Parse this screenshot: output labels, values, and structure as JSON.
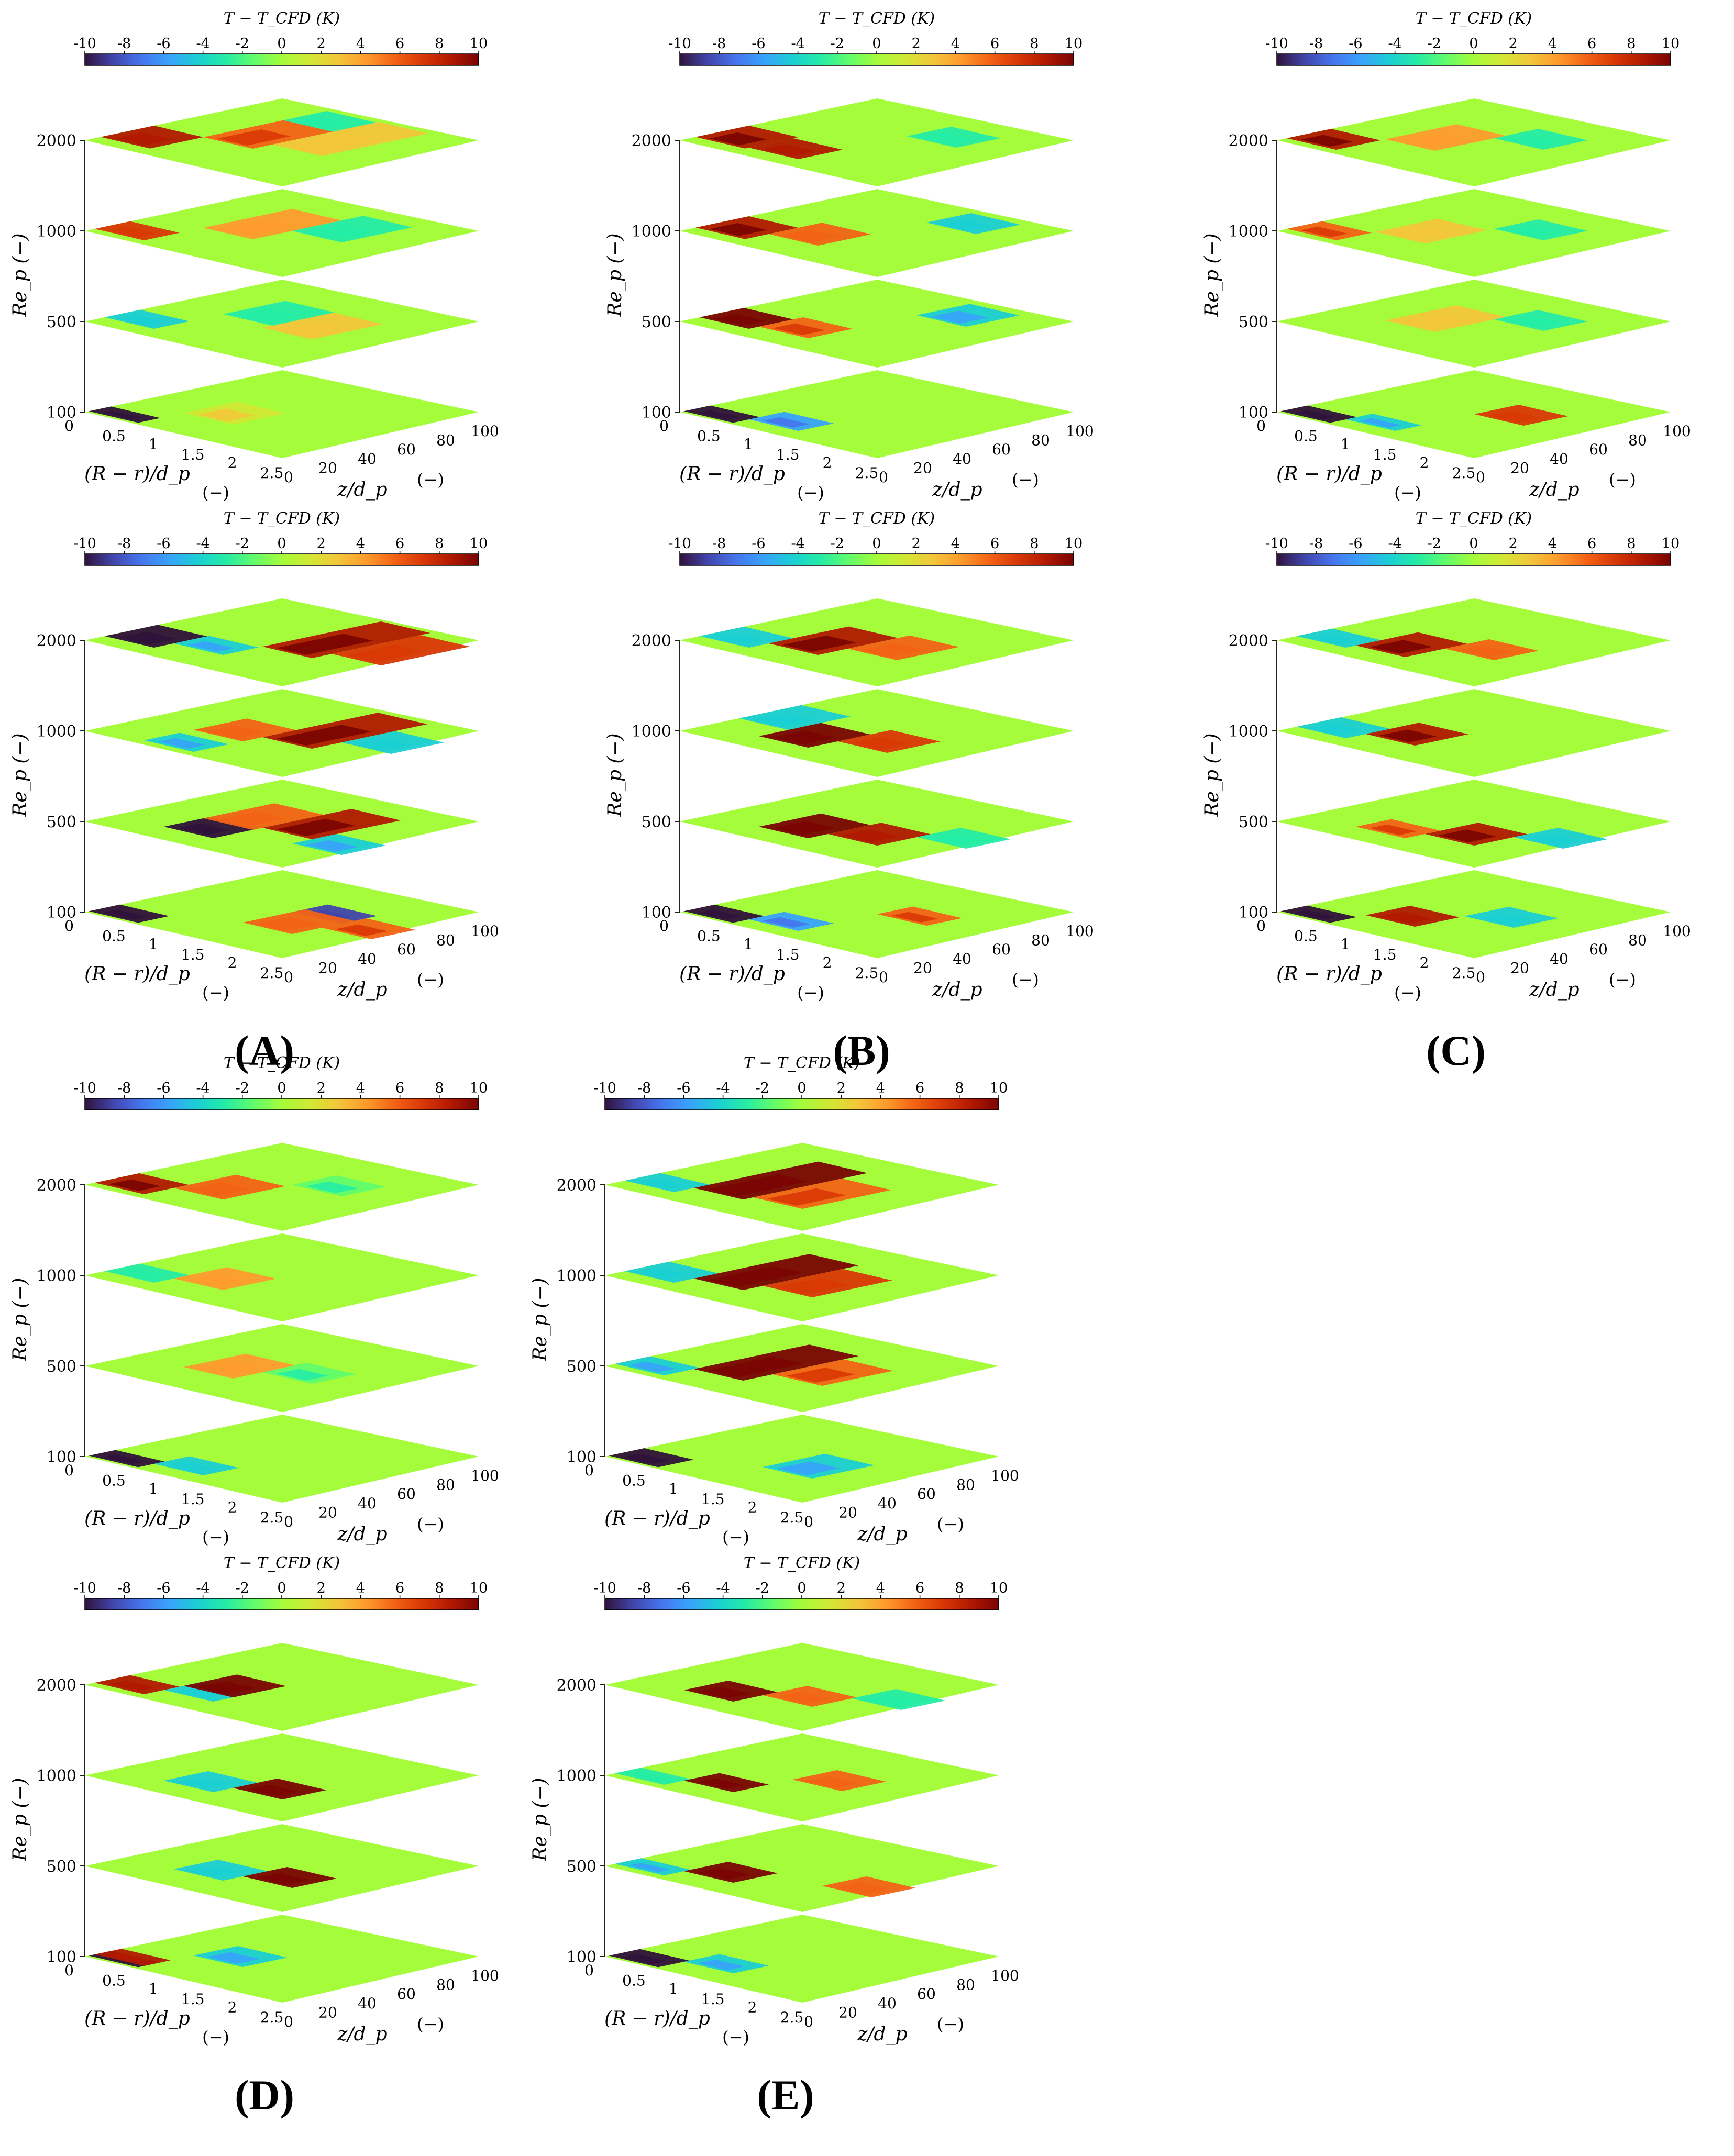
{
  "figure": {
    "panel_labels": [
      "(A)",
      "(B)",
      "(C)",
      "(D)",
      "(E)"
    ]
  },
  "colormap": [
    "#30123b",
    "#4145ab",
    "#4675ed",
    "#39a2fc",
    "#1bcfd4",
    "#24eca6",
    "#61fc6c",
    "#a4fc3b",
    "#d1e834",
    "#f3c63a",
    "#fe9b2d",
    "#f36315",
    "#d93806",
    "#b11901",
    "#7a0402"
  ],
  "chart_common": {
    "type": "heatmap",
    "colorbar_title": "T − T_CFD   (K)",
    "colorbar_ticks": [
      "-10",
      "-8",
      "-6",
      "-4",
      "-2",
      "0",
      "2",
      "4",
      "6",
      "8",
      "10"
    ],
    "clim": [
      -10,
      10
    ],
    "zlabel": "Re_p   (−)",
    "z_ticks": [
      "100",
      "500",
      "1000",
      "2000"
    ],
    "xlabel": "(R − r)/d_p",
    "xlabel_unit": "(−)",
    "x_ticks": [
      "0",
      "0.5",
      "1",
      "1.5",
      "2",
      "2.5"
    ],
    "xlim": [
      0,
      2.5
    ],
    "ylabel": "z/d_p",
    "ylabel_unit": "(−)",
    "y_ticks": [
      "0",
      "20",
      "40",
      "60",
      "80",
      "100"
    ],
    "ylim": [
      0,
      100
    ]
  },
  "chart_data": [
    {
      "panel": "A",
      "position": "top",
      "layers": [
        {
          "Re": 2000,
          "hot": [
            [
              1,
              0.35,
              0.9,
              6
            ],
            [
              2,
              0.45,
              1.2,
              3
            ],
            [
              0,
              0.08,
              0.6,
              8
            ]
          ],
          "cold": [
            [
              1,
              0.75,
              0.5,
              -3
            ]
          ]
        },
        {
          "Re": 1000,
          "hot": [
            [
              1,
              0.35,
              1.0,
              4
            ],
            [
              0,
              0.05,
              0.4,
              7
            ]
          ],
          "cold": [
            [
              2,
              0.55,
              0.8,
              -3
            ]
          ]
        },
        {
          "Re": 500,
          "hot": [
            [
              2,
              0.4,
              0.8,
              3
            ]
          ],
          "cold": [
            [
              1,
              0.45,
              0.7,
              -3
            ],
            [
              0,
              0.1,
              0.4,
              -4
            ]
          ]
        },
        {
          "Re": 100,
          "hot": [
            [
              1,
              0.25,
              0.6,
              2
            ]
          ],
          "cold": [
            [
              0,
              0.02,
              0.25,
              -10
            ]
          ]
        }
      ]
    },
    {
      "panel": "A",
      "position": "bottom",
      "layers": [
        {
          "Re": 2000,
          "hot": [
            [
              2,
              0.4,
              1.4,
              9
            ],
            [
              3,
              0.5,
              1.0,
              7
            ]
          ],
          "cold": [
            [
              0,
              0.1,
              0.6,
              -10
            ],
            [
              1,
              0.2,
              0.4,
              -5
            ]
          ]
        },
        {
          "Re": 1000,
          "hot": [
            [
              2,
              0.4,
              1.3,
              9
            ],
            [
              1,
              0.3,
              0.6,
              5
            ]
          ],
          "cold": [
            [
              1,
              0.05,
              0.4,
              -5
            ],
            [
              3,
              0.55,
              0.6,
              -4
            ]
          ]
        },
        {
          "Re": 500,
          "hot": [
            [
              2,
              0.4,
              1.0,
              9
            ],
            [
              1,
              0.35,
              0.8,
              5
            ]
          ],
          "cold": [
            [
              1,
              0.15,
              0.5,
              -10
            ],
            [
              3,
              0.3,
              0.5,
              -5
            ]
          ]
        },
        {
          "Re": 100,
          "hot": [
            [
              2,
              0.3,
              0.7,
              5
            ],
            [
              3,
              0.45,
              0.5,
              6
            ]
          ],
          "cold": [
            [
              0,
              0.02,
              0.35,
              -10
            ],
            [
              2,
              0.55,
              0.4,
              -8
            ]
          ]
        }
      ]
    },
    {
      "panel": "B",
      "position": "top",
      "layers": [
        {
          "Re": 2000,
          "hot": [
            [
              0,
              0.08,
              0.6,
              9
            ],
            [
              1,
              0.1,
              0.5,
              8
            ]
          ],
          "cold": [
            [
              2,
              0.65,
              0.5,
              -3
            ]
          ]
        },
        {
          "Re": 1000,
          "hot": [
            [
              0,
              0.08,
              0.6,
              9
            ],
            [
              1,
              0.2,
              0.6,
              5
            ]
          ],
          "cold": [
            [
              2,
              0.75,
              0.5,
              -4
            ]
          ]
        },
        {
          "Re": 500,
          "hot": [
            [
              0,
              0.1,
              0.5,
              10
            ],
            [
              1,
              0.15,
              0.5,
              6
            ]
          ],
          "cold": [
            [
              2,
              0.7,
              0.6,
              -5
            ]
          ]
        },
        {
          "Re": 100,
          "hot": [],
          "cold": [
            [
              0,
              0.02,
              0.3,
              -10
            ],
            [
              1,
              0.1,
              0.4,
              -6
            ]
          ]
        }
      ]
    },
    {
      "panel": "B",
      "position": "bottom",
      "layers": [
        {
          "Re": 2000,
          "hot": [
            [
              1,
              0.2,
              0.9,
              9
            ],
            [
              2,
              0.35,
              0.7,
              5
            ]
          ],
          "cold": [
            [
              0,
              0.1,
              0.5,
              -4
            ]
          ]
        },
        {
          "Re": 1000,
          "hot": [
            [
              1,
              0.15,
              0.7,
              10
            ],
            [
              2,
              0.3,
              0.6,
              7
            ]
          ],
          "cold": [
            [
              0,
              0.3,
              0.7,
              -4
            ]
          ]
        },
        {
          "Re": 500,
          "hot": [
            [
              1,
              0.15,
              0.7,
              10
            ],
            [
              2,
              0.25,
              0.6,
              8
            ]
          ],
          "cold": [
            [
              3,
              0.45,
              0.5,
              -3
            ]
          ]
        },
        {
          "Re": 100,
          "hot": [
            [
              2,
              0.5,
              0.4,
              6
            ]
          ],
          "cold": [
            [
              0,
              0.02,
              0.35,
              -10
            ],
            [
              1,
              0.1,
              0.4,
              -6
            ]
          ]
        }
      ]
    },
    {
      "panel": "C",
      "position": "top",
      "layers": [
        {
          "Re": 2000,
          "hot": [
            [
              0,
              0.05,
              0.5,
              9
            ],
            [
              1,
              0.3,
              0.8,
              4
            ]
          ],
          "cold": [
            [
              2,
              0.6,
              0.5,
              -3
            ]
          ]
        },
        {
          "Re": 1000,
          "hot": [
            [
              0,
              0.05,
              0.4,
              6
            ],
            [
              1,
              0.25,
              0.7,
              3
            ]
          ],
          "cold": [
            [
              2,
              0.6,
              0.5,
              -3
            ]
          ]
        },
        {
          "Re": 500,
          "hot": [
            [
              1,
              0.3,
              0.8,
              3
            ]
          ],
          "cold": [
            [
              2,
              0.6,
              0.5,
              -3
            ]
          ]
        },
        {
          "Re": 100,
          "hot": [
            [
              2,
              0.5,
              0.5,
              7
            ]
          ],
          "cold": [
            [
              0,
              0.02,
              0.3,
              -10
            ],
            [
              1,
              0.1,
              0.3,
              -5
            ]
          ]
        }
      ]
    },
    {
      "panel": "C",
      "position": "bottom",
      "layers": [
        {
          "Re": 2000,
          "hot": [
            [
              1,
              0.15,
              0.7,
              9
            ],
            [
              2,
              0.35,
              0.5,
              5
            ]
          ],
          "cold": [
            [
              0,
              0.1,
              0.4,
              -4
            ]
          ]
        },
        {
          "Re": 1000,
          "hot": [
            [
              1,
              0.2,
              0.6,
              9
            ]
          ],
          "cold": [
            [
              0,
              0.1,
              0.5,
              -4
            ]
          ]
        },
        {
          "Re": 500,
          "hot": [
            [
              2,
              0.25,
              0.6,
              9
            ],
            [
              1,
              0.15,
              0.4,
              6
            ]
          ],
          "cold": [
            [
              3,
              0.45,
              0.5,
              -4
            ]
          ]
        },
        {
          "Re": 100,
          "hot": [
            [
              1,
              0.2,
              0.5,
              8
            ]
          ],
          "cold": [
            [
              0,
              0.02,
              0.3,
              -10
            ],
            [
              2,
              0.45,
              0.5,
              -4
            ]
          ]
        }
      ]
    },
    {
      "panel": "D",
      "position": "top",
      "layers": [
        {
          "Re": 2000,
          "hot": [
            [
              0,
              0.05,
              0.5,
              9
            ],
            [
              1,
              0.2,
              0.7,
              5
            ]
          ],
          "cold": [
            [
              2,
              0.55,
              0.5,
              -2
            ]
          ]
        },
        {
          "Re": 1000,
          "hot": [
            [
              1,
              0.2,
              0.6,
              4
            ]
          ],
          "cold": [
            [
              0,
              0.1,
              0.4,
              -3
            ]
          ]
        },
        {
          "Re": 500,
          "hot": [
            [
              1,
              0.25,
              0.7,
              4
            ]
          ],
          "cold": [
            [
              2,
              0.4,
              0.5,
              -2
            ]
          ]
        },
        {
          "Re": 100,
          "hot": [],
          "cold": [
            [
              0,
              0.02,
              0.3,
              -10
            ],
            [
              1,
              0.1,
              0.4,
              -4
            ]
          ]
        }
      ]
    },
    {
      "panel": "D",
      "position": "bottom",
      "layers": [
        {
          "Re": 2000,
          "hot": [
            [
              1,
              0.25,
              0.6,
              10
            ],
            [
              0,
              0.05,
              0.4,
              8
            ]
          ],
          "cold": [
            [
              1,
              0.15,
              0.4,
              -4
            ]
          ]
        },
        {
          "Re": 1000,
          "hot": [
            [
              2,
              0.25,
              0.5,
              10
            ]
          ],
          "cold": [
            [
              1,
              0.15,
              0.5,
              -4
            ]
          ]
        },
        {
          "Re": 500,
          "hot": [
            [
              2,
              0.3,
              0.5,
              10
            ]
          ],
          "cold": [
            [
              1,
              0.2,
              0.5,
              -4
            ]
          ]
        },
        {
          "Re": 100,
          "hot": [
            [
              0,
              0.05,
              0.3,
              8
            ]
          ],
          "cold": [
            [
              0,
              0.02,
              0.25,
              -10
            ],
            [
              1,
              0.3,
              0.5,
              -5
            ]
          ]
        }
      ]
    },
    {
      "panel": "E",
      "position": "top",
      "layers": [
        {
          "Re": 2000,
          "hot": [
            [
              1,
              0.2,
              1.4,
              10
            ],
            [
              2,
              0.25,
              1.0,
              6
            ]
          ],
          "cold": [
            [
              0,
              0.1,
              0.4,
              -4
            ]
          ]
        },
        {
          "Re": 1000,
          "hot": [
            [
              1,
              0.2,
              1.3,
              10
            ],
            [
              2,
              0.3,
              0.9,
              7
            ]
          ],
          "cold": [
            [
              0,
              0.1,
              0.5,
              -4
            ]
          ]
        },
        {
          "Re": 500,
          "hot": [
            [
              1,
              0.2,
              1.3,
              10
            ],
            [
              2,
              0.35,
              0.8,
              6
            ]
          ],
          "cold": [
            [
              0,
              0.05,
              0.4,
              -5
            ]
          ]
        },
        {
          "Re": 100,
          "hot": [],
          "cold": [
            [
              0,
              0.02,
              0.4,
              -10
            ],
            [
              2,
              0.3,
              0.7,
              -5
            ]
          ]
        }
      ]
    },
    {
      "panel": "E",
      "position": "bottom",
      "layers": [
        {
          "Re": 2000,
          "hot": [
            [
              1,
              0.15,
              0.5,
              10
            ],
            [
              2,
              0.3,
              0.5,
              5
            ]
          ],
          "cold": [
            [
              3,
              0.5,
              0.5,
              -3
            ]
          ]
        },
        {
          "Re": 1000,
          "hot": [
            [
              1,
              0.15,
              0.4,
              10
            ],
            [
              2,
              0.45,
              0.5,
              5
            ]
          ],
          "cold": [
            [
              0,
              0.05,
              0.3,
              -3
            ]
          ]
        },
        {
          "Re": 500,
          "hot": [
            [
              1,
              0.15,
              0.5,
              10
            ],
            [
              3,
              0.35,
              0.5,
              5
            ]
          ],
          "cold": [
            [
              0,
              0.05,
              0.3,
              -5
            ]
          ]
        },
        {
          "Re": 100,
          "hot": [],
          "cold": [
            [
              0,
              0.02,
              0.35,
              -10
            ],
            [
              1,
              0.15,
              0.4,
              -5
            ]
          ]
        }
      ]
    }
  ]
}
